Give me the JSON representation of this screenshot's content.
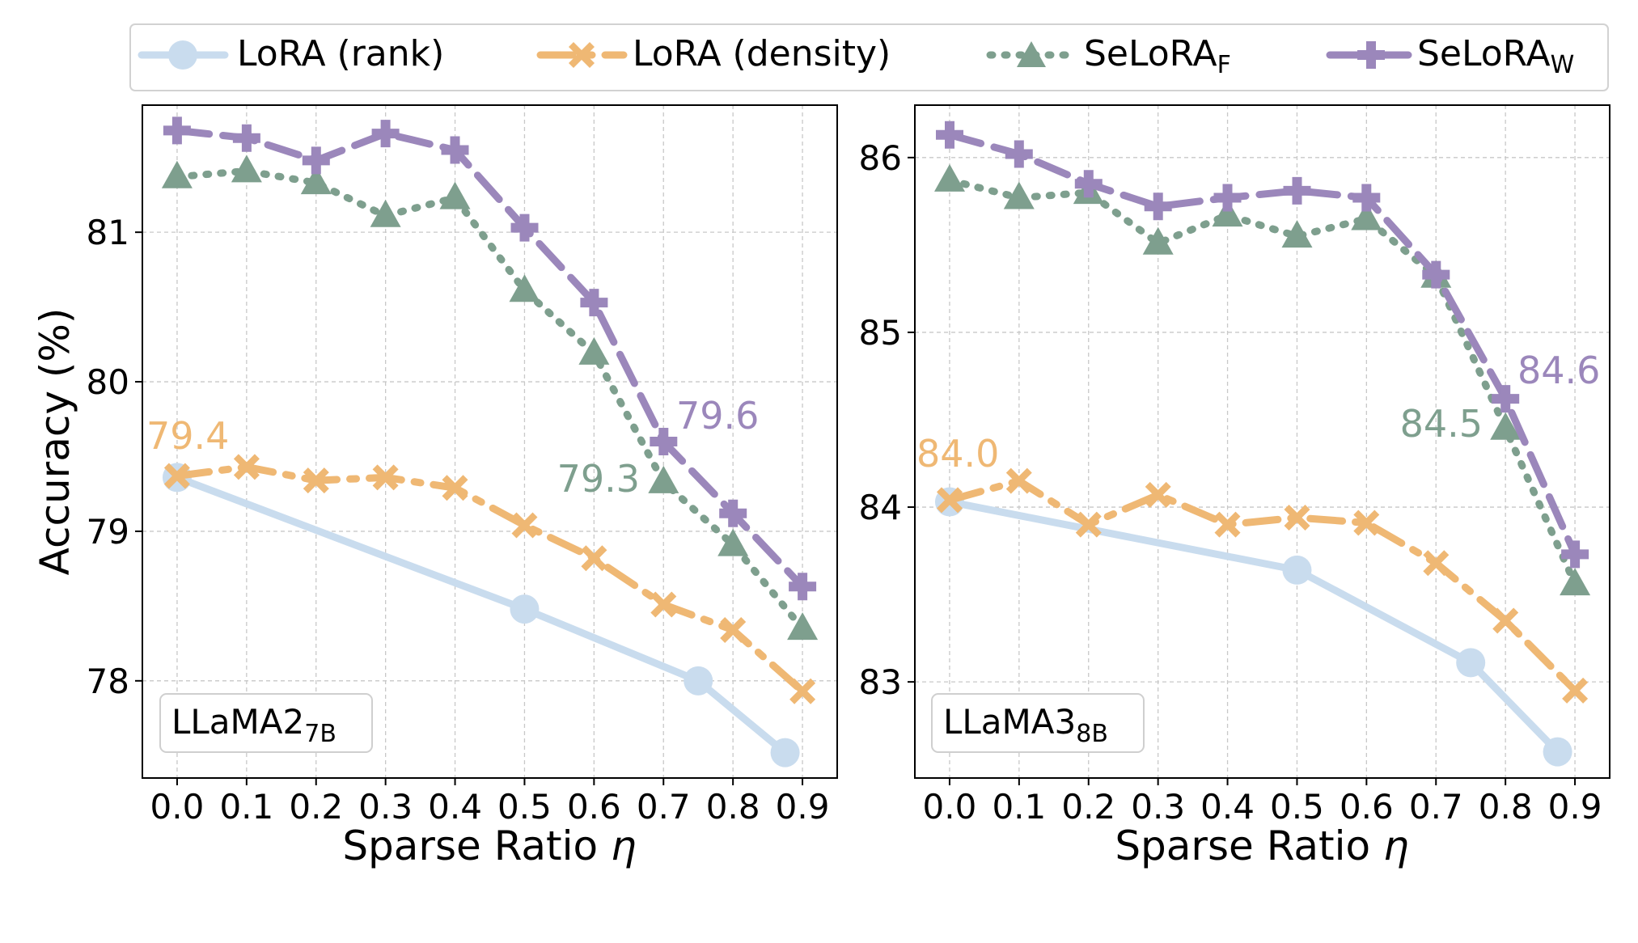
{
  "legend": {
    "entries": [
      {
        "key": "lora_rank",
        "label": "LoRA (rank)",
        "sub": ""
      },
      {
        "key": "lora_density",
        "label": "LoRA (density)",
        "sub": ""
      },
      {
        "key": "selora_f",
        "label": "SeLoRA",
        "sub": "F"
      },
      {
        "key": "selora_w",
        "label": "SeLoRA",
        "sub": "W"
      }
    ]
  },
  "colors": {
    "lora_rank": "#c9dcee",
    "lora_density": "#efb874",
    "selora_f": "#7e9f8e",
    "selora_w": "#9b87bb"
  },
  "chart_data": [
    {
      "type": "line",
      "panel_label": "LLaMA2",
      "panel_label_sub": "7B",
      "xlabel": "Sparse Ratio",
      "xlabel_symbol": "η",
      "ylabel": "Accuracy (%)",
      "xlim": [
        -0.05,
        0.95
      ],
      "ylim": [
        77.35,
        81.85
      ],
      "xticks": [
        "0.0",
        "0.1",
        "0.2",
        "0.3",
        "0.4",
        "0.5",
        "0.6",
        "0.7",
        "0.8",
        "0.9"
      ],
      "yticks": [
        "78",
        "79",
        "80",
        "81"
      ],
      "series": [
        {
          "key": "lora_rank",
          "name": "LoRA (rank)",
          "x": [
            0.0,
            0.5,
            0.75,
            0.875
          ],
          "values": [
            79.36,
            78.48,
            78.0,
            77.52
          ]
        },
        {
          "key": "lora_density",
          "name": "LoRA (density)",
          "x": [
            0.0,
            0.1,
            0.2,
            0.3,
            0.4,
            0.5,
            0.6,
            0.7,
            0.8,
            0.9
          ],
          "values": [
            79.37,
            79.43,
            79.34,
            79.36,
            79.29,
            79.04,
            78.82,
            78.51,
            78.34,
            77.93
          ]
        },
        {
          "key": "selora_f",
          "name": "SeLoRA_F",
          "x": [
            0.0,
            0.1,
            0.2,
            0.3,
            0.4,
            0.5,
            0.6,
            0.7,
            0.8,
            0.9
          ],
          "values": [
            81.37,
            81.41,
            81.33,
            81.11,
            81.23,
            80.61,
            80.19,
            79.33,
            78.91,
            78.35
          ]
        },
        {
          "key": "selora_w",
          "name": "SeLoRA_W",
          "x": [
            0.0,
            0.1,
            0.2,
            0.3,
            0.4,
            0.5,
            0.6,
            0.7,
            0.8,
            0.9
          ],
          "values": [
            81.68,
            81.63,
            81.48,
            81.66,
            81.55,
            81.03,
            80.53,
            79.6,
            79.12,
            78.63
          ]
        }
      ],
      "annotations": [
        {
          "text": "79.4",
          "series": "lora_density"
        },
        {
          "text": "79.3",
          "series": "selora_f"
        },
        {
          "text": "79.6",
          "series": "selora_w"
        }
      ]
    },
    {
      "type": "line",
      "panel_label": "LLaMA3",
      "panel_label_sub": "8B",
      "xlabel": "Sparse Ratio",
      "xlabel_symbol": "η",
      "ylabel": "",
      "xlim": [
        -0.05,
        0.95
      ],
      "ylim": [
        82.45,
        86.3
      ],
      "xticks": [
        "0.0",
        "0.1",
        "0.2",
        "0.3",
        "0.4",
        "0.5",
        "0.6",
        "0.7",
        "0.8",
        "0.9"
      ],
      "yticks": [
        "83",
        "84",
        "85",
        "86"
      ],
      "series": [
        {
          "key": "lora_rank",
          "name": "LoRA (rank)",
          "x": [
            0.0,
            0.5,
            0.75,
            0.875
          ],
          "values": [
            84.03,
            83.64,
            83.11,
            82.6
          ]
        },
        {
          "key": "lora_density",
          "name": "LoRA (density)",
          "x": [
            0.0,
            0.1,
            0.2,
            0.3,
            0.4,
            0.5,
            0.6,
            0.7,
            0.8,
            0.9
          ],
          "values": [
            84.04,
            84.15,
            83.9,
            84.07,
            83.9,
            83.94,
            83.91,
            83.68,
            83.35,
            82.95
          ]
        },
        {
          "key": "selora_f",
          "name": "SeLoRA_F",
          "x": [
            0.0,
            0.1,
            0.2,
            0.3,
            0.4,
            0.5,
            0.6,
            0.7,
            0.8,
            0.9
          ],
          "values": [
            85.87,
            85.77,
            85.8,
            85.51,
            85.67,
            85.55,
            85.65,
            85.32,
            84.45,
            83.56
          ]
        },
        {
          "key": "selora_w",
          "name": "SeLoRA_W",
          "x": [
            0.0,
            0.1,
            0.2,
            0.3,
            0.4,
            0.5,
            0.6,
            0.7,
            0.8,
            0.9
          ],
          "values": [
            86.13,
            86.02,
            85.85,
            85.72,
            85.77,
            85.81,
            85.77,
            85.33,
            84.62,
            83.73
          ]
        }
      ],
      "annotations": [
        {
          "text": "84.0",
          "series": "lora_density"
        },
        {
          "text": "84.5",
          "series": "selora_f"
        },
        {
          "text": "84.6",
          "series": "selora_w"
        }
      ]
    }
  ]
}
